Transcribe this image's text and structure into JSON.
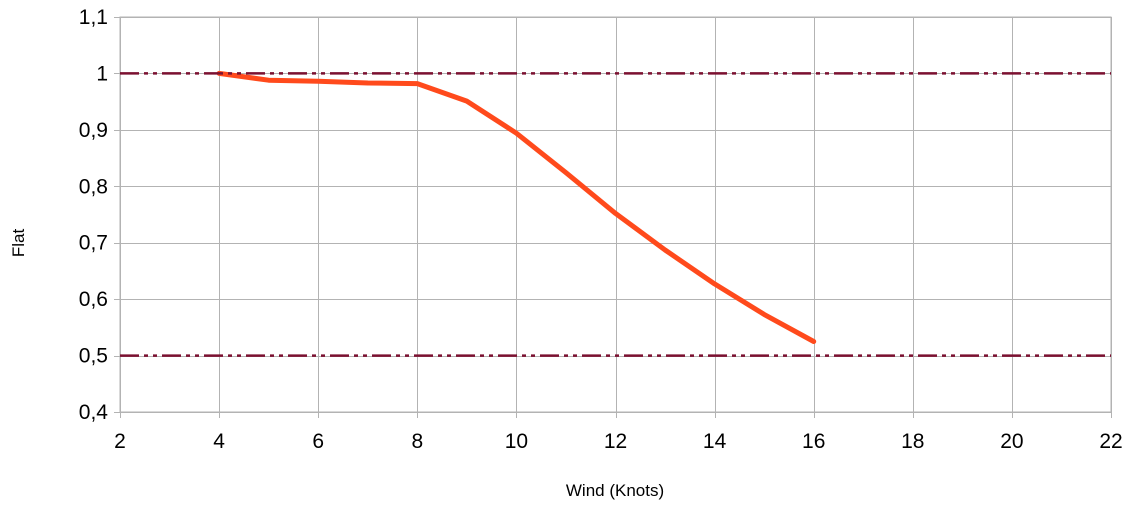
{
  "chart_data": {
    "type": "line",
    "xlabel": "Wind (Knots)",
    "ylabel": "Flat",
    "xlim": [
      2,
      22
    ],
    "ylim": [
      0.4,
      1.1
    ],
    "x_ticks": [
      2,
      4,
      6,
      8,
      10,
      12,
      14,
      16,
      18,
      20,
      22
    ],
    "y_ticks": [
      0.4,
      0.5,
      0.6,
      0.7,
      0.8,
      0.9,
      1,
      1.1
    ],
    "decimal_separator": ",",
    "grid": true,
    "series": [
      {
        "color": "#ff4a1c",
        "style": "solid",
        "x": [
          4,
          5,
          6,
          7,
          8,
          9,
          10,
          11,
          12,
          13,
          14,
          15,
          16
        ],
        "y": [
          1.0,
          0.988,
          0.986,
          0.983,
          0.982,
          0.951,
          0.894,
          0.824,
          0.752,
          0.687,
          0.627,
          0.573,
          0.525
        ]
      },
      {
        "color": "#7b1030",
        "style": "dash-dot-dot",
        "x": [
          2,
          22
        ],
        "y": [
          1.0,
          1.0
        ]
      },
      {
        "color": "#7b1030",
        "style": "dash-dot-dot",
        "x": [
          2,
          22
        ],
        "y": [
          0.5,
          0.5
        ]
      }
    ]
  }
}
